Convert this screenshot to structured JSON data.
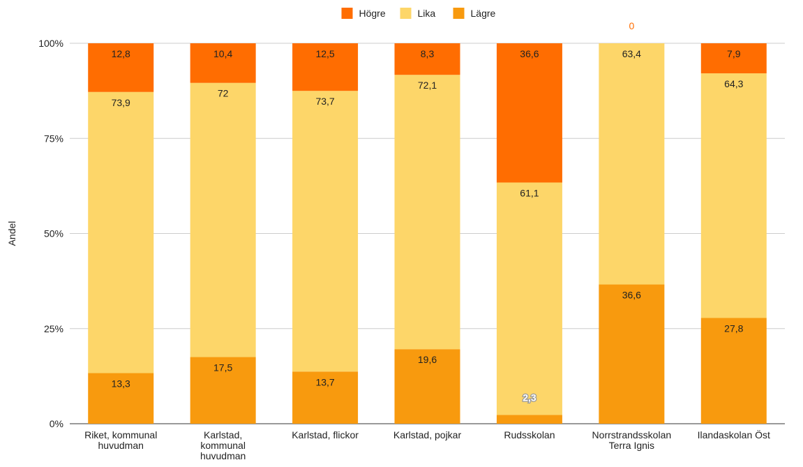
{
  "chart_data": {
    "type": "bar",
    "stacked": true,
    "percent_stacked": true,
    "title": "",
    "xlabel": "",
    "ylabel": "Andel",
    "ylim": [
      0,
      100
    ],
    "y_ticks": [
      "0%",
      "25%",
      "50%",
      "75%",
      "100%"
    ],
    "grid": true,
    "legend_position": "top",
    "categories": [
      [
        "Riket, kommunal",
        "huvudman"
      ],
      [
        "Karlstad,",
        "kommunal",
        "huvudman"
      ],
      [
        "Karlstad, flickor"
      ],
      [
        "Karlstad, pojkar"
      ],
      [
        "Rudsskolan"
      ],
      [
        "Norrstrandsskolan",
        "Terra Ignis"
      ],
      [
        "Ilandaskolan Öst"
      ]
    ],
    "series": [
      {
        "name": "Lägre",
        "color": "#f89a0e",
        "values": [
          13.3,
          17.5,
          13.7,
          19.6,
          2.3,
          36.6,
          27.8
        ],
        "labels": [
          "13,3",
          "17,5",
          "13,7",
          "19,6",
          "2,3",
          "36,6",
          "27,8"
        ]
      },
      {
        "name": "Lika",
        "color": "#fdd669",
        "values": [
          73.9,
          72,
          73.7,
          72.1,
          61.1,
          63.4,
          64.3
        ],
        "labels": [
          "73,9",
          "72",
          "73,7",
          "72,1",
          "61,1",
          "63,4",
          "64,3"
        ]
      },
      {
        "name": "Högre",
        "color": "#ff6d01",
        "values": [
          12.8,
          10.4,
          12.5,
          8.3,
          36.6,
          0,
          7.9
        ],
        "labels": [
          "12,8",
          "10,4",
          "12,5",
          "8,3",
          "36,6",
          "0",
          "7,9"
        ]
      }
    ],
    "legend_order": [
      "Högre",
      "Lika",
      "Lägre"
    ]
  }
}
